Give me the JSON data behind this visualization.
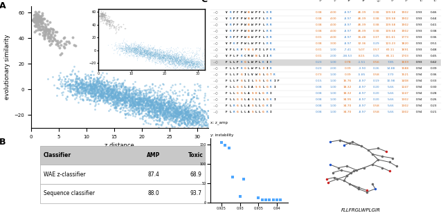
{
  "panel_A": {
    "xlabel": "z distance",
    "ylabel": "evolutionary similarity",
    "blue_color": "#6baed6",
    "gray_color": "#aaaaaa",
    "xlim": [
      0,
      32
    ],
    "ylim": [
      -30,
      65
    ],
    "xticks": [
      0,
      5,
      10,
      15,
      20,
      25,
      30
    ],
    "yticks": [
      -20,
      0,
      20,
      40,
      60
    ]
  },
  "panel_B": {
    "headers": [
      "Classifier",
      "AMP",
      "Toxic"
    ],
    "rows": [
      [
        "WAE z-classifier",
        "87.4",
        "68.9"
      ],
      [
        "Sequence classifier",
        "88.0",
        "93.7"
      ]
    ],
    "header_bg": "#c8c8c8",
    "row_bg": "#ffffff",
    "border_color": "#aaaaaa"
  },
  "panel_C": {
    "col_headers": [
      "motability",
      "charge",
      "avg_mol",
      "avg_start",
      "b_moment",
      "instability",
      "mol_weight",
      "z_amp",
      "z_tox"
    ],
    "sequences": [
      "VRFFPWNWPFLRR",
      "VRFFPWNWPFLRR",
      "VRFFPWNWPFLRR",
      "VRFFPWNWPFLRR",
      "VRFFPWNWPFLRR",
      "VFKFPWLWPFLRR",
      "VFLRFYNGPILFRR",
      "VFLFRCMWNLIIR",
      "FLLFRGLWPLKIR",
      "FLLFRGLWPLEIR",
      "FLLFGILVWSLGTR",
      "FLLFGLILSSLGKIF",
      "FLLGGLIASGLGKI",
      "FLLGGLASELGKI",
      "FLLGGLASLLLGKI",
      "FLRGLLASLLGKI",
      "FLRGLLASLLGKI"
    ],
    "values": [
      [
        0.38,
        4.0,
        -8.97,
        46.39,
        0.38,
        139.58,
        1902.25,
        0.93,
        0.46
      ],
      [
        0.38,
        4.0,
        -8.97,
        46.39,
        0.38,
        139.58,
        1902.25,
        0.93,
        0.44
      ],
      [
        0.38,
        4.0,
        -8.97,
        46.39,
        0.38,
        139.58,
        1902.25,
        0.93,
        0.41
      ],
      [
        0.38,
        4.0,
        -8.97,
        46.39,
        0.38,
        139.58,
        1902.25,
        0.93,
        0.38
      ],
      [
        0.31,
        4.0,
        -8.97,
        35.48,
        0.37,
        131.61,
        1773.1,
        0.93,
        0.36
      ],
      [
        0.38,
        3.0,
        -8.97,
        32.36,
        0.29,
        123.23,
        1820.19,
        0.93,
        0.51
      ],
      [
        0.31,
        1.0,
        -7.41,
        5.07,
        0.57,
        60.11,
        1691.01,
        0.93,
        0.48
      ],
      [
        0.31,
        2.0,
        -38.53,
        8.15,
        0.25,
        66.11,
        1703.0,
        0.93,
        0.45
      ],
      [
        0.23,
        1.0,
        0.78,
        -1.51,
        0.56,
        7.85,
        1659.07,
        0.93,
        0.42
      ],
      [
        0.23,
        2.0,
        0.39,
        -3.9,
        0.26,
        14.88,
        1587.95,
        0.94,
        0.39
      ],
      [
        0.73,
        1.0,
        0.39,
        -5.85,
        0.58,
        3.7,
        1520.86,
        0.94,
        0.36
      ],
      [
        0.15,
        1.0,
        16.76,
        -8.97,
        0.19,
        10.98,
        1407.74,
        0.94,
        0.33
      ],
      [
        0.08,
        1.0,
        18.32,
        -8.97,
        0.2,
        5.66,
        1246.61,
        0.94,
        0.3
      ],
      [
        0.08,
        1.0,
        18.32,
        -8.97,
        0.2,
        5.66,
        1246.61,
        0.94,
        0.28
      ],
      [
        0.08,
        1.0,
        34.95,
        -8.97,
        0.2,
        5.66,
        1301.62,
        0.94,
        0.26
      ],
      [
        0.08,
        1.0,
        34.7,
        -8.97,
        0.58,
        5.66,
        1301.62,
        0.94,
        0.23
      ],
      [
        0.08,
        1.0,
        34.7,
        -8.97,
        0.58,
        5.66,
        1301.62,
        0.94,
        0.21
      ]
    ],
    "highlighted_row": 8,
    "highlight_color": "#d8d8d8"
  },
  "scatter_bottom": {
    "x_vals": [
      0.925,
      0.926,
      0.927,
      0.928,
      0.93,
      0.931,
      0.935,
      0.936,
      0.937,
      0.938,
      0.939,
      0.94,
      0.941
    ],
    "y_vals": [
      155,
      148,
      140,
      66,
      14.88,
      60.11,
      10.98,
      5.66,
      5.66,
      5.66,
      5.66,
      5.66,
      5.66
    ],
    "xlim": [
      0.922,
      0.943
    ],
    "ylim": [
      0,
      165
    ],
    "yticks": [
      0,
      50,
      100,
      150
    ],
    "xtick_labels": [
      "0.925",
      "0.93",
      "0.935",
      "0.94"
    ],
    "xticks": [
      0.925,
      0.93,
      0.935,
      0.94
    ],
    "color": "#4da6ff",
    "xlabel": "x: z_amp",
    "ylabel": "y: instability"
  },
  "molecule_label": "FLLFRGLWPLGIR",
  "bg_color": "#ffffff",
  "orange": "#e07020",
  "blue": "#4488cc"
}
